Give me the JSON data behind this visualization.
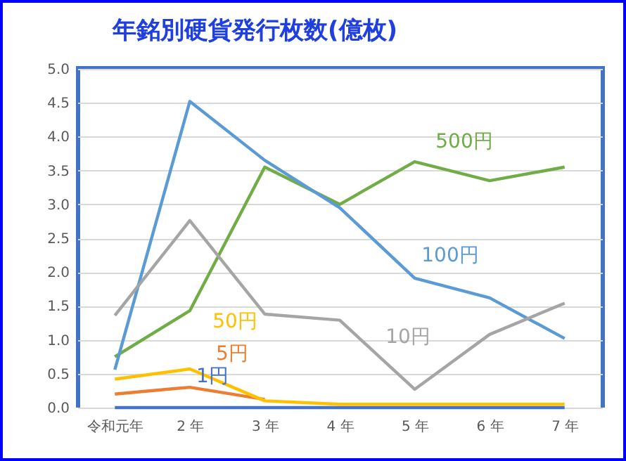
{
  "chart_data": {
    "type": "line",
    "title": "年銘別硬貨発行枚数(億枚)",
    "categories": [
      "令和元年",
      "2 年",
      "3 年",
      "4 年",
      "5 年",
      "6 年",
      "7 年"
    ],
    "series": [
      {
        "name": "1円",
        "color": "#4472c4",
        "values": [
          0.0,
          0.0,
          0.0,
          0.0,
          0.0,
          0.0,
          0.0
        ]
      },
      {
        "name": "500円",
        "color": "#70ad47",
        "values": [
          0.75,
          1.43,
          3.55,
          3.0,
          3.63,
          3.35,
          3.55
        ]
      },
      {
        "name": "100円",
        "color": "#5b9bd5",
        "values": [
          0.56,
          4.52,
          3.65,
          2.95,
          1.91,
          1.62,
          1.02
        ]
      },
      {
        "name": "10円",
        "color": "#a5a5a5",
        "values": [
          1.36,
          2.76,
          1.38,
          1.29,
          0.27,
          1.08,
          1.54
        ]
      },
      {
        "name": "5円",
        "color": "#ed7d31",
        "values": [
          0.2,
          0.3,
          0.12,
          null,
          null,
          null,
          null
        ]
      },
      {
        "name": "50円",
        "color": "#ffc000",
        "values": [
          0.42,
          0.57,
          0.1,
          0.05,
          0.05,
          0.05,
          0.05
        ]
      }
    ],
    "ylim": [
      0,
      5
    ],
    "yticks": [
      {
        "value": 0,
        "label": "0.0"
      },
      0.5,
      {
        "value": 1,
        "label": "1.0"
      },
      1.5,
      {
        "value": 2,
        "label": "2.0"
      },
      2.5,
      {
        "value": 3,
        "label": "3.0"
      },
      3.5,
      {
        "value": 4,
        "label": "4.0"
      },
      4.5,
      {
        "value": 5,
        "label": "5.0"
      }
    ],
    "grid": "y",
    "legend": false,
    "marker": "none",
    "line_style": "solid"
  }
}
